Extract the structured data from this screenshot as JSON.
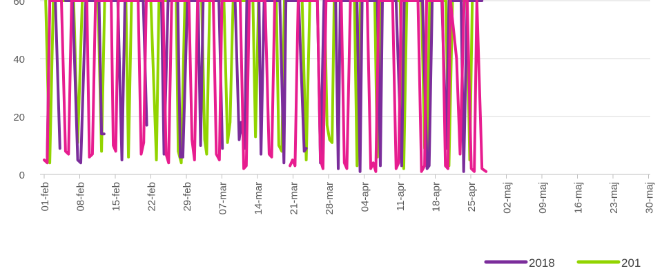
{
  "chart_data": {
    "type": "line",
    "title": "",
    "xlabel": "",
    "ylabel": "",
    "ylim": [
      0,
      60
    ],
    "y_ticks": [
      "0",
      "20",
      "40",
      "60"
    ],
    "x_ticks": [
      "01-feb",
      "08-feb",
      "15-feb",
      "22-feb",
      "29-feb",
      "07-mar",
      "14-mar",
      "21-mar",
      "28-mar",
      "04-apr",
      "11-apr",
      "18-apr",
      "25-apr",
      "02-maj",
      "09-maj",
      "16-maj",
      "23-maj",
      "30-maj"
    ],
    "gridlines": "horizontal",
    "legend_position": "bottom-right",
    "series": [
      {
        "name": "2018",
        "color": "#7B2D9B",
        "points": [
          [
            0.6,
            6
          ],
          [
            1.1,
            60
          ],
          [
            2.2,
            60
          ],
          [
            3.1,
            9
          ],
          [
            4.2,
            60
          ],
          [
            5.6,
            60
          ],
          [
            6.6,
            5
          ],
          [
            7.2,
            4
          ],
          [
            8.2,
            60
          ],
          [
            9.5,
            60
          ],
          [
            10.8,
            60
          ],
          [
            11.3,
            14
          ],
          [
            11.8,
            14
          ],
          [
            12.6,
            60
          ],
          [
            14.5,
            60
          ],
          [
            15.3,
            5
          ],
          [
            15.9,
            60
          ],
          [
            16.6,
            60
          ],
          [
            17.4,
            60
          ],
          [
            18.4,
            60
          ],
          [
            19.5,
            60
          ],
          [
            20.2,
            17
          ],
          [
            21.3,
            60
          ],
          [
            23.1,
            60
          ],
          [
            23.6,
            7
          ],
          [
            24.4,
            60
          ],
          [
            26.3,
            60
          ],
          [
            26.8,
            6
          ],
          [
            27.3,
            6
          ],
          [
            28.2,
            60
          ],
          [
            30.3,
            60
          ],
          [
            30.8,
            10
          ],
          [
            31.3,
            60
          ],
          [
            32.2,
            60
          ],
          [
            33.3,
            60
          ],
          [
            34.4,
            60
          ],
          [
            35.1,
            9
          ],
          [
            35.6,
            60
          ],
          [
            37.6,
            60
          ],
          [
            38.4,
            12
          ],
          [
            38.8,
            18
          ],
          [
            39.5,
            9
          ],
          [
            39.9,
            60
          ],
          [
            41.2,
            60
          ],
          [
            42.3,
            60
          ],
          [
            42.7,
            7
          ],
          [
            43.3,
            60
          ],
          [
            44.7,
            60
          ],
          [
            46.4,
            60
          ],
          [
            47.2,
            4
          ],
          [
            47.6,
            60
          ],
          [
            49.2,
            60
          ],
          [
            50.1,
            60
          ],
          [
            51.2,
            8
          ],
          [
            51.6,
            9
          ],
          [
            52.1,
            60
          ],
          [
            53.8,
            60
          ],
          [
            54.4,
            4
          ],
          [
            55.1,
            60
          ],
          [
            56.3,
            60
          ],
          [
            57.4,
            60
          ],
          [
            57.9,
            2
          ],
          [
            58.3,
            60
          ],
          [
            59.2,
            60
          ],
          [
            59.7,
            60
          ],
          [
            60.5,
            60
          ],
          [
            61.6,
            60
          ],
          [
            62.2,
            1
          ],
          [
            62.6,
            60
          ],
          [
            63.4,
            60
          ],
          [
            64.5,
            60
          ],
          [
            65.6,
            60
          ],
          [
            66.2,
            3
          ],
          [
            66.6,
            60
          ],
          [
            68.3,
            60
          ],
          [
            69.3,
            60
          ],
          [
            70.4,
            3
          ],
          [
            70.9,
            60
          ],
          [
            72.6,
            60
          ],
          [
            73.4,
            60
          ],
          [
            74.5,
            60
          ],
          [
            75.4,
            2
          ],
          [
            75.8,
            3
          ],
          [
            76.4,
            60
          ],
          [
            77.5,
            60
          ],
          [
            78.3,
            60
          ],
          [
            79.2,
            9
          ],
          [
            79.7,
            60
          ],
          [
            80.5,
            60
          ],
          [
            81.3,
            60
          ],
          [
            82.1,
            60
          ],
          [
            82.6,
            1
          ],
          [
            83.3,
            60
          ],
          [
            84.6,
            60
          ],
          [
            85.4,
            60
          ],
          [
            86.2,
            60
          ]
        ],
        "gaps_after_x": [
          3.1,
          11.8,
          20.2,
          35.1,
          51.6
        ]
      },
      {
        "name": "201",
        "color": "#92D400",
        "points": [
          [
            0.3,
            60
          ],
          [
            1.1,
            4
          ],
          [
            1.8,
            60
          ],
          [
            5.8,
            60
          ],
          [
            6.6,
            11
          ],
          [
            7.5,
            60
          ],
          [
            10.6,
            60
          ],
          [
            11.3,
            8
          ],
          [
            11.9,
            60
          ],
          [
            16.1,
            60
          ],
          [
            16.6,
            6
          ],
          [
            17.2,
            60
          ],
          [
            21.0,
            60
          ],
          [
            22.1,
            5
          ],
          [
            22.6,
            60
          ],
          [
            26.0,
            60
          ],
          [
            26.4,
            8
          ],
          [
            27.0,
            4
          ],
          [
            27.7,
            60
          ],
          [
            31.0,
            60
          ],
          [
            31.6,
            12
          ],
          [
            32.0,
            7
          ],
          [
            32.6,
            60
          ],
          [
            35.4,
            60
          ],
          [
            36.1,
            11
          ],
          [
            36.6,
            18
          ],
          [
            37.2,
            60
          ],
          [
            41.1,
            60
          ],
          [
            41.6,
            13
          ],
          [
            42.2,
            60
          ],
          [
            45.7,
            60
          ],
          [
            46.2,
            10
          ],
          [
            46.8,
            8
          ],
          [
            47.3,
            60
          ],
          [
            50.8,
            60
          ],
          [
            51.6,
            5
          ],
          [
            52.3,
            60
          ],
          [
            55.2,
            60
          ],
          [
            55.7,
            17
          ],
          [
            56.2,
            12
          ],
          [
            56.7,
            11
          ],
          [
            57.1,
            60
          ],
          [
            61.1,
            60
          ],
          [
            61.6,
            3
          ],
          [
            62.3,
            60
          ],
          [
            65.1,
            60
          ],
          [
            65.6,
            6
          ],
          [
            66.2,
            60
          ],
          [
            70.1,
            60
          ],
          [
            70.8,
            2
          ],
          [
            71.4,
            60
          ],
          [
            74.3,
            60
          ],
          [
            74.9,
            9
          ],
          [
            75.4,
            8
          ],
          [
            75.9,
            60
          ],
          [
            79.1,
            60
          ],
          [
            79.7,
            3
          ],
          [
            80.4,
            60
          ],
          [
            83.2,
            60
          ],
          [
            83.8,
            5
          ],
          [
            84.3,
            60
          ]
        ],
        "gaps_after_x": [
          7.5,
          42.2,
          52.3
        ]
      },
      {
        "name": "",
        "color": "#E71D8F",
        "points": [
          [
            0,
            5
          ],
          [
            0.6,
            4
          ],
          [
            1.1,
            60
          ],
          [
            3.4,
            60
          ],
          [
            4.2,
            8
          ],
          [
            4.8,
            7
          ],
          [
            5.4,
            60
          ],
          [
            8.4,
            60
          ],
          [
            8.9,
            6
          ],
          [
            9.5,
            7
          ],
          [
            10.1,
            60
          ],
          [
            13.2,
            60
          ],
          [
            13.6,
            10
          ],
          [
            14.1,
            8
          ],
          [
            14.6,
            60
          ],
          [
            18.5,
            60
          ],
          [
            19.1,
            7
          ],
          [
            19.6,
            11
          ],
          [
            20.1,
            60
          ],
          [
            23.4,
            60
          ],
          [
            24.0,
            7
          ],
          [
            24.5,
            4
          ],
          [
            25.1,
            60
          ],
          [
            28.5,
            60
          ],
          [
            29.1,
            12
          ],
          [
            29.6,
            5
          ],
          [
            30.2,
            60
          ],
          [
            33.3,
            60
          ],
          [
            33.9,
            7
          ],
          [
            34.5,
            5
          ],
          [
            35.0,
            60
          ],
          [
            38.6,
            60
          ],
          [
            39.3,
            2
          ],
          [
            39.8,
            3
          ],
          [
            40.4,
            60
          ],
          [
            43.5,
            60
          ],
          [
            44.3,
            7
          ],
          [
            44.8,
            6
          ],
          [
            45.4,
            60
          ],
          [
            48.4,
            3
          ],
          [
            48.9,
            5
          ],
          [
            49.4,
            3
          ],
          [
            50.0,
            60
          ],
          [
            53.8,
            60
          ],
          [
            54.4,
            5
          ],
          [
            54.9,
            2
          ],
          [
            55.5,
            60
          ],
          [
            58.5,
            60
          ],
          [
            59.1,
            4
          ],
          [
            59.6,
            2
          ],
          [
            60.3,
            60
          ],
          [
            63.6,
            60
          ],
          [
            64.3,
            2
          ],
          [
            64.8,
            4
          ],
          [
            65.3,
            1
          ],
          [
            65.9,
            60
          ],
          [
            68.6,
            60
          ],
          [
            69.3,
            2
          ],
          [
            69.8,
            4
          ],
          [
            70.3,
            60
          ],
          [
            73.6,
            60
          ],
          [
            74.3,
            1
          ],
          [
            74.9,
            3
          ],
          [
            75.3,
            60
          ],
          [
            78.4,
            60
          ],
          [
            79.0,
            3
          ],
          [
            79.5,
            2
          ],
          [
            80.0,
            60
          ],
          [
            81.2,
            40
          ],
          [
            81.9,
            7
          ],
          [
            82.7,
            60
          ],
          [
            83.3,
            60
          ],
          [
            84.1,
            2
          ],
          [
            84.7,
            1
          ],
          [
            85.2,
            60
          ],
          [
            86.2,
            2
          ],
          [
            87.0,
            1
          ]
        ],
        "gaps_after_x": [
          45.4
        ]
      }
    ]
  }
}
